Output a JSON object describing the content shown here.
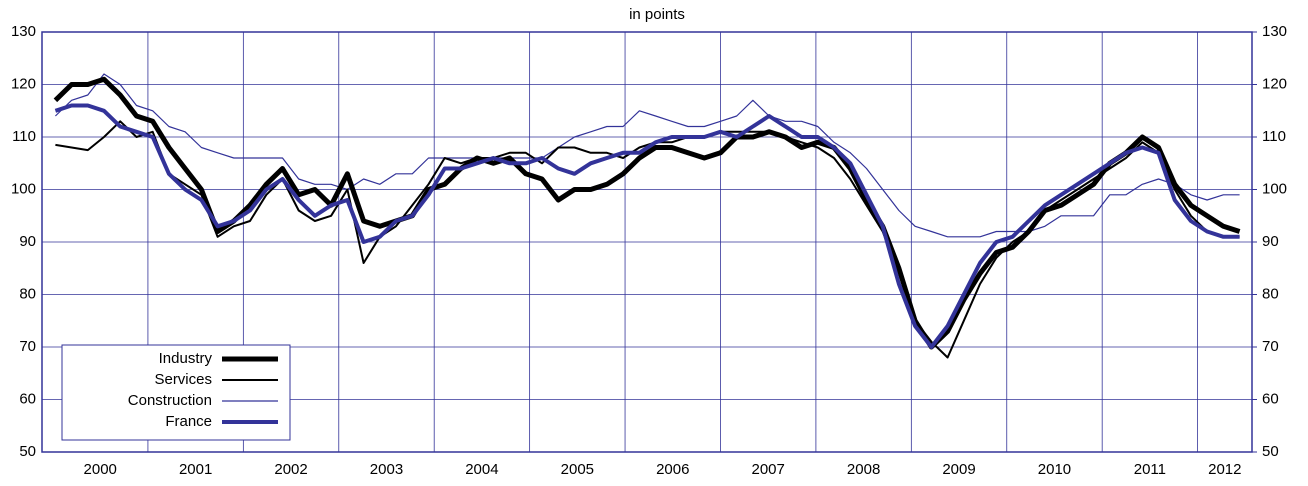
{
  "chart_data": {
    "type": "line",
    "title": "in points",
    "x": [
      2000.03,
      2000.2,
      2000.37,
      2000.54,
      2000.71,
      2000.88,
      2001.05,
      2001.22,
      2001.39,
      2001.56,
      2001.73,
      2001.9,
      2002.07,
      2002.24,
      2002.41,
      2002.58,
      2002.75,
      2002.92,
      2003.09,
      2003.26,
      2003.43,
      2003.6,
      2003.77,
      2003.94,
      2004.11,
      2004.28,
      2004.45,
      2004.62,
      2004.79,
      2004.96,
      2005.13,
      2005.3,
      2005.47,
      2005.64,
      2005.81,
      2005.98,
      2006.15,
      2006.32,
      2006.49,
      2006.66,
      2006.83,
      2007.0,
      2007.17,
      2007.34,
      2007.51,
      2007.68,
      2007.85,
      2008.02,
      2008.19,
      2008.36,
      2008.53,
      2008.7,
      2008.87,
      2009.04,
      2009.21,
      2009.38,
      2009.55,
      2009.72,
      2009.89,
      2010.06,
      2010.23,
      2010.4,
      2010.57,
      2010.74,
      2010.91,
      2011.08,
      2011.25,
      2011.42,
      2011.59,
      2011.76,
      2011.93,
      2012.1,
      2012.27,
      2012.44
    ],
    "series": [
      {
        "name": "Industry",
        "color": "#000000",
        "width": 5,
        "values": [
          117,
          120,
          120,
          121,
          118,
          114,
          113,
          108,
          104,
          100,
          92,
          94,
          97,
          101,
          104,
          99,
          100,
          97,
          103,
          94,
          93,
          94,
          95,
          100,
          101,
          104,
          106,
          105,
          106,
          103,
          102,
          98,
          100,
          100,
          101,
          103,
          106,
          108,
          108,
          107,
          106,
          107,
          110,
          110,
          111,
          110,
          108,
          109,
          108,
          104,
          98,
          93,
          85,
          75,
          70,
          73,
          79,
          84,
          88,
          89,
          92,
          96,
          97,
          99,
          101,
          105,
          107,
          110,
          108,
          101,
          97,
          95,
          93,
          92
        ]
      },
      {
        "name": "Services",
        "color": "#000000",
        "width": 2,
        "values": [
          108.5,
          108,
          107.5,
          110,
          113,
          110,
          111,
          103,
          101,
          99,
          91,
          93,
          94,
          99,
          102,
          96,
          94,
          95,
          100,
          86,
          91,
          93,
          97,
          101,
          106,
          105,
          106,
          106,
          107,
          107,
          105,
          108,
          108,
          107,
          107,
          106,
          108,
          109,
          109,
          110,
          110,
          111,
          111,
          111,
          111,
          110,
          109,
          108,
          106,
          102,
          97,
          92,
          84,
          75,
          71,
          68,
          75,
          82,
          87,
          90,
          92,
          96,
          98,
          100,
          102,
          104,
          106,
          109,
          107,
          100,
          95,
          92,
          91,
          91
        ]
      },
      {
        "name": "Construction",
        "color": "#333399",
        "width": 1.2,
        "values": [
          114,
          117,
          118,
          122,
          120,
          116,
          115,
          112,
          111,
          108,
          107,
          106,
          106,
          106,
          106,
          102,
          101,
          101,
          100,
          102,
          101,
          103,
          103,
          106,
          106,
          106,
          106,
          106,
          106,
          106,
          106,
          108,
          110,
          111,
          112,
          112,
          115,
          114,
          113,
          112,
          112,
          113,
          114,
          117,
          114,
          113,
          113,
          112,
          109,
          107,
          104,
          100,
          96,
          93,
          92,
          91,
          91,
          91,
          92,
          92,
          92,
          93,
          95,
          95,
          95,
          99,
          99,
          101,
          102,
          101,
          99,
          98,
          99,
          99
        ]
      },
      {
        "name": "France",
        "color": "#333399",
        "width": 4,
        "values": [
          115,
          116,
          116,
          115,
          112,
          111,
          110,
          103,
          100,
          98,
          93,
          94,
          96,
          100,
          102,
          98,
          95,
          97,
          98,
          90,
          91,
          94,
          95,
          99,
          104,
          104,
          105,
          106,
          105,
          105,
          106,
          104,
          103,
          105,
          106,
          107,
          107,
          109,
          110,
          110,
          110,
          111,
          110,
          112,
          114,
          112,
          110,
          110,
          108,
          105,
          99,
          93,
          82,
          74,
          70,
          74,
          80,
          86,
          90,
          91,
          94,
          97,
          99,
          101,
          103,
          105,
          107,
          108,
          107,
          98,
          94,
          92,
          91,
          91
        ]
      }
    ],
    "xlim": [
      1999.89,
      2012.57
    ],
    "xticks": [
      {
        "value": 2000,
        "label": "2000"
      },
      {
        "value": 2001,
        "label": "2001"
      },
      {
        "value": 2002,
        "label": "2002"
      },
      {
        "value": 2003,
        "label": "2003"
      },
      {
        "value": 2004,
        "label": "2004"
      },
      {
        "value": 2005,
        "label": "2005"
      },
      {
        "value": 2006,
        "label": "2006"
      },
      {
        "value": 2007,
        "label": "2007"
      },
      {
        "value": 2008,
        "label": "2008"
      },
      {
        "value": 2009,
        "label": "2009"
      },
      {
        "value": 2010,
        "label": "2010"
      },
      {
        "value": 2011,
        "label": "2011"
      },
      {
        "value": 2012,
        "label": "2012"
      }
    ],
    "ylim": [
      50,
      130
    ],
    "yticks": [
      50,
      60,
      70,
      80,
      90,
      100,
      110,
      120,
      130
    ],
    "y2lim": [
      50,
      130
    ],
    "y2ticks": [
      50,
      60,
      70,
      80,
      90,
      100,
      110,
      120,
      130
    ],
    "grid": true,
    "legend": "lower left"
  }
}
